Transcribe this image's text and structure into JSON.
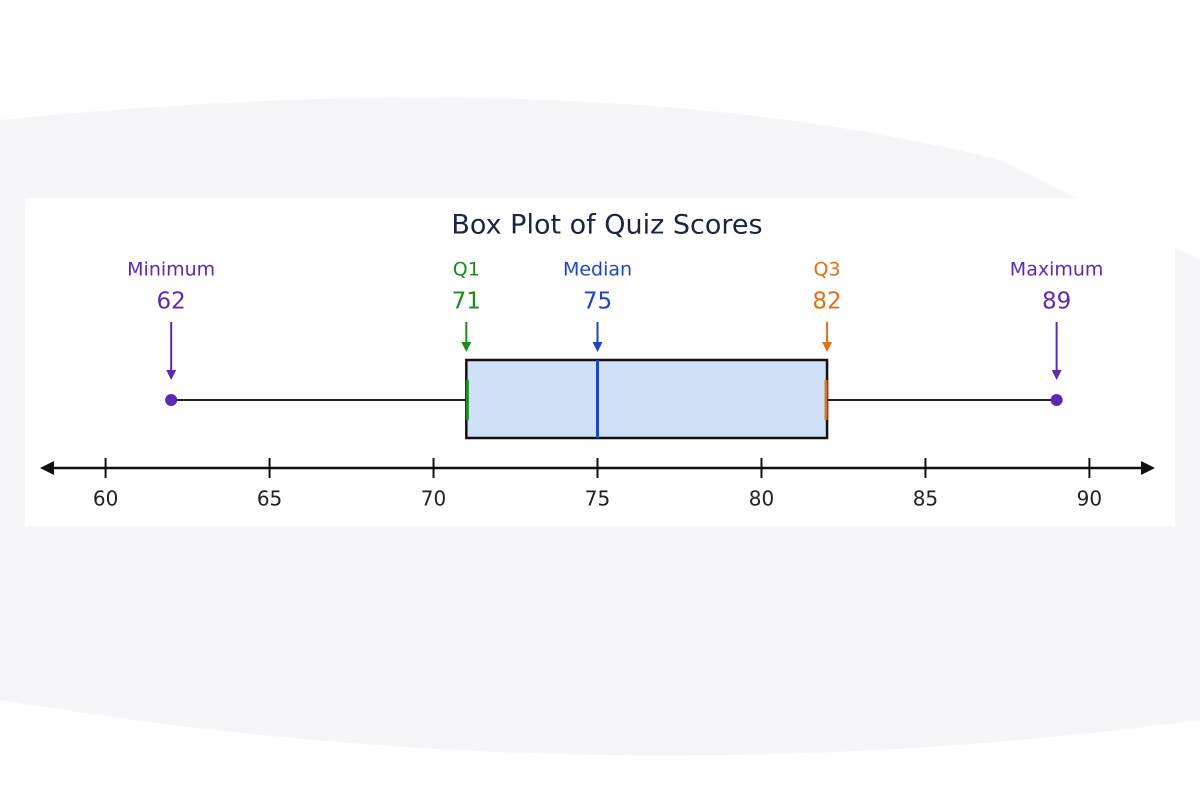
{
  "chart_data": {
    "type": "box",
    "title": "Box Plot of Quiz Scores",
    "xlim": [
      58,
      92
    ],
    "xticks": [
      60,
      65,
      70,
      75,
      80,
      85,
      90
    ],
    "box_color": "#cfe0f7",
    "stats": [
      {
        "name": "Minimum",
        "value": 62,
        "color": "#5b2bb5"
      },
      {
        "name": "Q1",
        "value": 71,
        "color": "#1e8a1e"
      },
      {
        "name": "Median",
        "value": 75,
        "color": "#1f45c4"
      },
      {
        "name": "Q3",
        "value": 82,
        "color": "#e0701a"
      },
      {
        "name": "Maximum",
        "value": 89,
        "color": "#5b2bb5"
      }
    ]
  }
}
